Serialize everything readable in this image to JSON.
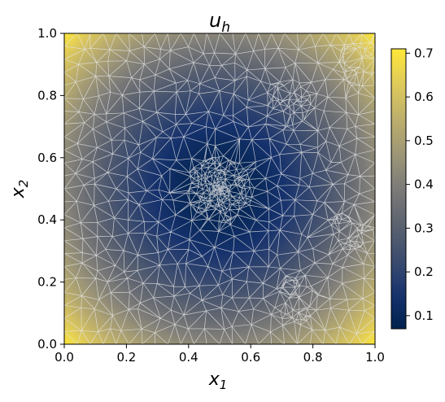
{
  "chart_data": {
    "type": "heatmap",
    "title": "u_h",
    "title_base": "u",
    "title_sub": "h",
    "xlabel": "x_1",
    "xlabel_base": "x",
    "xlabel_sub": "1",
    "ylabel": "x_2",
    "ylabel_base": "x",
    "ylabel_sub": "2",
    "xlim": [
      0.0,
      1.0
    ],
    "ylim": [
      0.0,
      1.0
    ],
    "xticks": [
      0.0,
      0.2,
      0.4,
      0.6,
      0.8,
      1.0
    ],
    "yticks": [
      0.0,
      0.2,
      0.4,
      0.6,
      0.8,
      1.0
    ],
    "xtick_labels": [
      "0.0",
      "0.2",
      "0.4",
      "0.6",
      "0.8",
      "1.0"
    ],
    "ytick_labels": [
      "0.0",
      "0.2",
      "0.4",
      "0.6",
      "0.8",
      "1.0"
    ],
    "field": {
      "minimum_location": [
        0.5,
        0.5
      ],
      "min_value": 0.07,
      "max_value": 0.71,
      "description": "value grows with distance from center; maxima in corners"
    },
    "colorbar": {
      "colormap": "cividis",
      "range": [
        0.07,
        0.71
      ],
      "ticks": [
        0.1,
        0.2,
        0.3,
        0.4,
        0.5,
        0.6,
        0.7
      ],
      "tick_labels": [
        "0.1",
        "0.2",
        "0.3",
        "0.4",
        "0.5",
        "0.6",
        "0.7"
      ]
    },
    "mesh": {
      "overlay": true,
      "color": "#e6e6e6",
      "refinement_center": [
        0.5,
        0.5
      ],
      "secondary_refinement": [
        [
          0.72,
          0.78
        ],
        [
          0.95,
          0.9
        ],
        [
          0.75,
          0.15
        ],
        [
          0.92,
          0.35
        ]
      ]
    },
    "grid": false,
    "legend": "none"
  }
}
